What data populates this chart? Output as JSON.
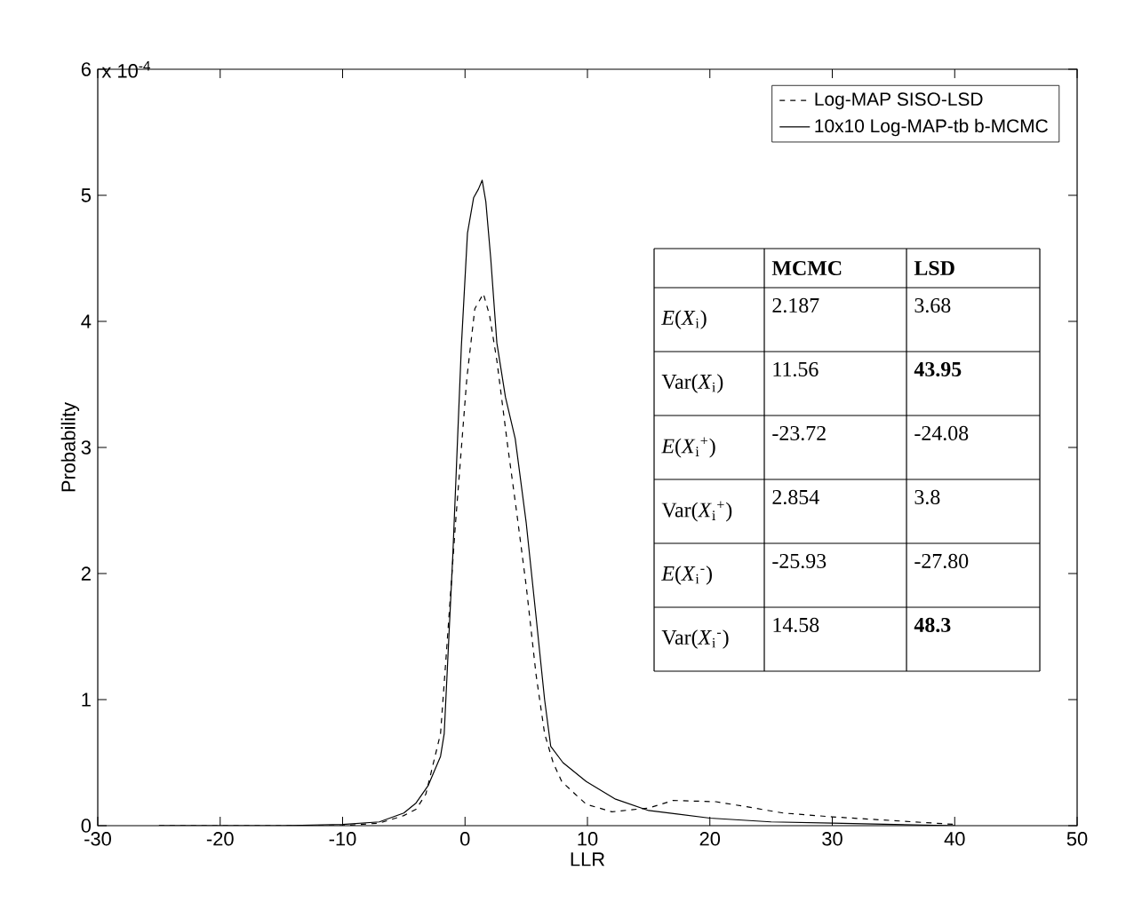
{
  "chart_data": {
    "type": "line",
    "xlabel": "LLR",
    "ylabel": "Probability",
    "xlim": [
      -30,
      50
    ],
    "xticks": [
      -30,
      -20,
      -10,
      0,
      10,
      20,
      30,
      40,
      50
    ],
    "ylim": [
      0,
      6
    ],
    "yticks": [
      0,
      1,
      2,
      3,
      4,
      5,
      6
    ],
    "legend": "top right",
    "series": [
      {
        "name": "Log-MAP SISO-LSD",
        "color": "#000000",
        "line_style": "dashed",
        "x": [
          -25,
          -10,
          -7,
          -5,
          -4,
          -3.2,
          -2,
          -1.5,
          -0.8,
          0.15,
          0.8,
          1.5,
          2,
          2.6,
          3.5,
          4.2,
          5,
          5.8,
          6.5,
          7.2,
          7.9,
          9,
          9.9,
          12,
          15,
          17,
          20.5,
          23,
          26,
          30,
          35,
          40
        ],
        "values": [
          0,
          0,
          0.02,
          0.08,
          0.13,
          0.25,
          0.73,
          1.4,
          2.37,
          3.55,
          4.1,
          4.22,
          4.05,
          3.69,
          3.0,
          2.5,
          1.9,
          1.2,
          0.73,
          0.5,
          0.35,
          0.25,
          0.17,
          0.11,
          0.14,
          0.2,
          0.19,
          0.15,
          0.1,
          0.07,
          0.04,
          0.01
        ]
      },
      {
        "name": "10x10 Log-MAP-tb b-MCMC",
        "color": "#000000",
        "line_style": "solid",
        "x": [
          -25,
          -15,
          -10,
          -7,
          -5,
          -4,
          -3,
          -2,
          -1.7,
          -1,
          -0.3,
          0.2,
          0.7,
          1.1,
          1.4,
          1.7,
          2.1,
          2.6,
          3.3,
          4.1,
          5,
          5.8,
          6.5,
          7,
          8,
          9.9,
          12.3,
          15,
          20,
          25,
          30,
          35,
          40
        ],
        "values": [
          0,
          0,
          0.01,
          0.03,
          0.1,
          0.18,
          0.32,
          0.55,
          0.73,
          2.14,
          3.8,
          4.7,
          4.98,
          5.05,
          5.12,
          4.95,
          4.5,
          3.83,
          3.4,
          3.07,
          2.4,
          1.66,
          1.0,
          0.63,
          0.5,
          0.35,
          0.21,
          0.12,
          0.06,
          0.03,
          0.02,
          0.01,
          0
        ]
      }
    ],
    "annotations": [
      "x 10$^{-4}$",
      "**MCMC**",
      "**LSD**",
      "*E*(*X*$_{i}$)",
      "2.187",
      "3.68",
      "Var(*X*$_{i}$)",
      "11.56",
      "**43.95**",
      "*E*(*X*$_{i}$$^{+}$)",
      "-23.72",
      "-24.08",
      "Var(*X*$_{i}$$^{+}$)",
      "2.854",
      "3.8",
      "*E*(*X*$_{i}$$^{-}$)",
      "-25.93",
      "-27.80",
      "Var(*X*$_{i}$$^{-}$)",
      "14.58",
      "**48.3**"
    ]
  }
}
